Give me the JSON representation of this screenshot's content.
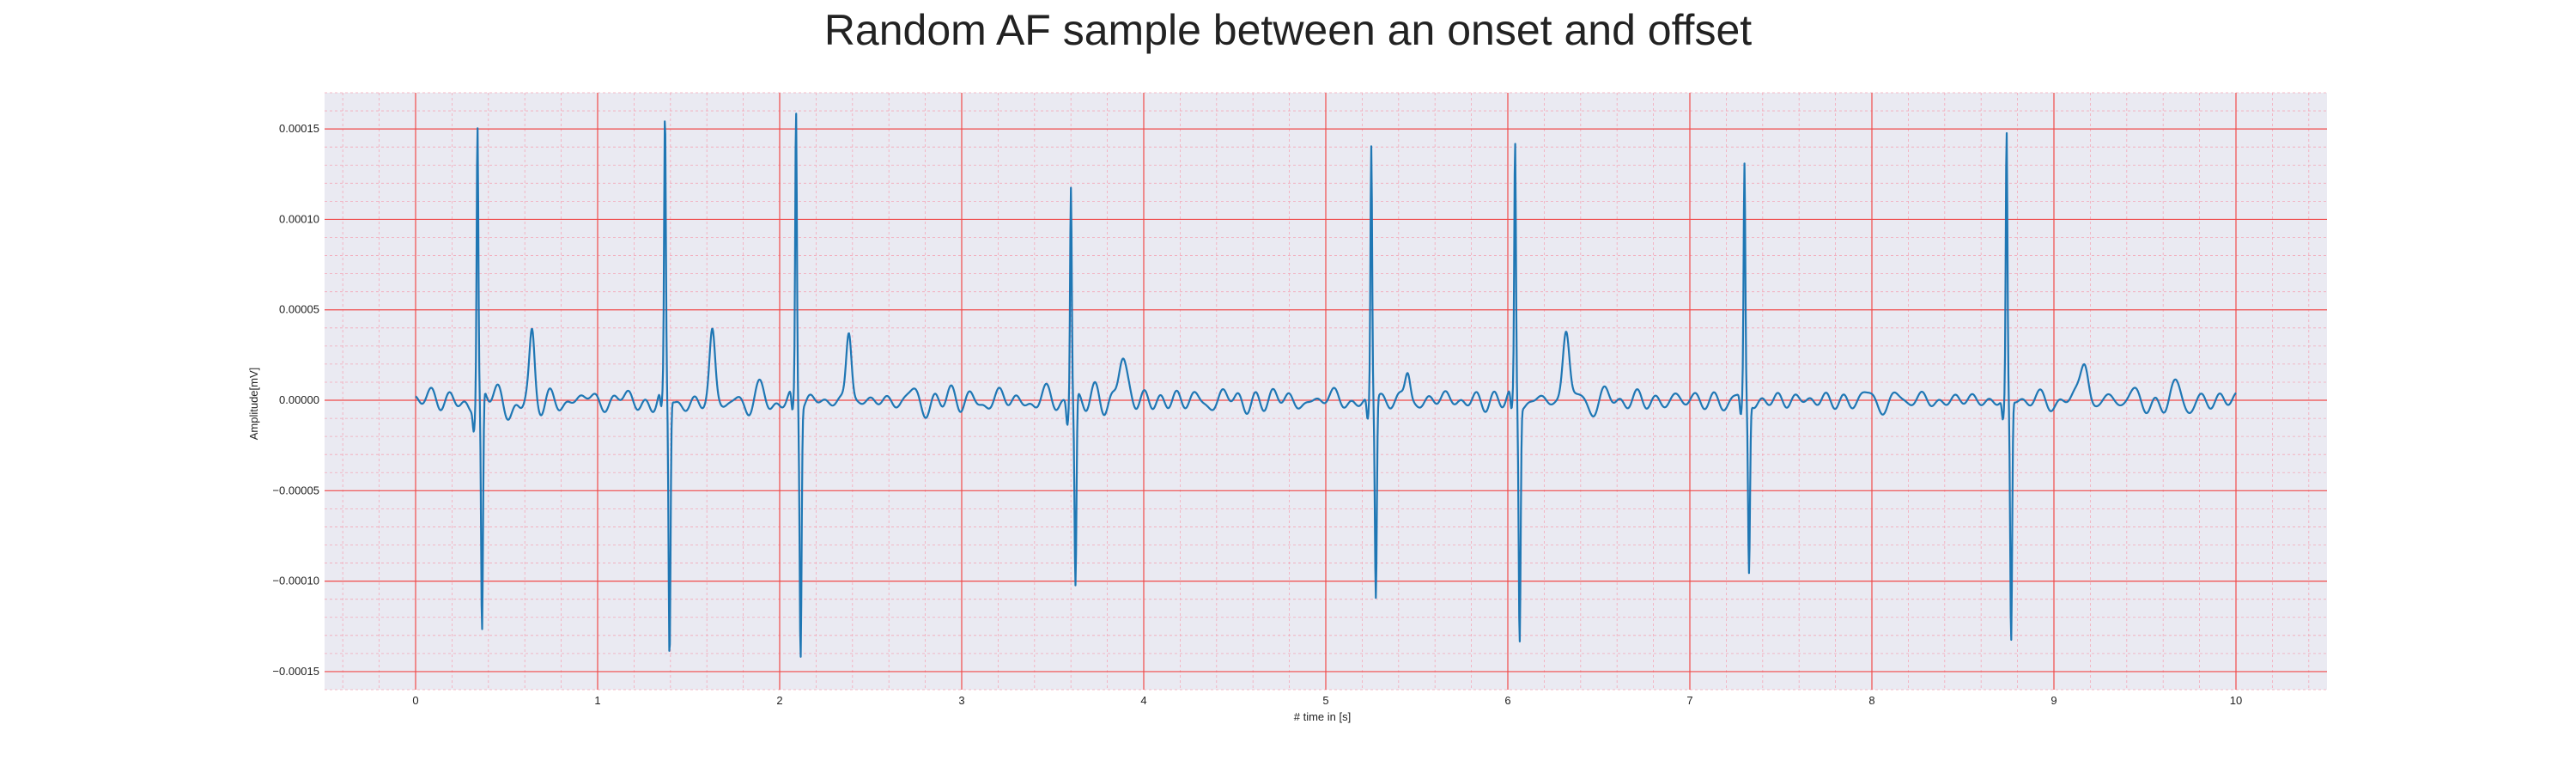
{
  "chart_data": {
    "type": "line",
    "title": "Random AF sample between an onset and offset",
    "xlabel": "# time in [s]",
    "ylabel": "Amplitude[mV]",
    "xlim": [
      -0.5,
      10.5
    ],
    "ylim": [
      -0.00016,
      0.00017
    ],
    "x_ticks": [
      0,
      1,
      2,
      3,
      4,
      5,
      6,
      7,
      8,
      9,
      10
    ],
    "x_tick_labels": [
      "0",
      "1",
      "2",
      "3",
      "4",
      "5",
      "6",
      "7",
      "8",
      "9",
      "10"
    ],
    "y_ticks": [
      -0.00015,
      -0.0001,
      -5e-05,
      0,
      5e-05,
      0.0001,
      0.00015
    ],
    "y_tick_labels": [
      "−0.00015",
      "−0.00010",
      "−0.00005",
      "0.00000",
      "0.00005",
      "0.00010",
      "0.00015"
    ],
    "grid": true,
    "minor_grid": true,
    "series": [
      {
        "color": "#1f77b4",
        "x_start": 0,
        "x_end": 10,
        "r_peaks": [
          {
            "t": 0.34,
            "peak": 0.00015,
            "trough": -0.000135
          },
          {
            "t": 1.37,
            "peak": 0.00015,
            "trough": -0.000145
          },
          {
            "t": 2.09,
            "peak": 0.000158,
            "trough": -0.000138
          },
          {
            "t": 3.6,
            "peak": 0.00012,
            "trough": -0.000105
          },
          {
            "t": 5.25,
            "peak": 0.00014,
            "trough": -0.00011
          },
          {
            "t": 6.04,
            "peak": 0.00014,
            "trough": -0.00013
          },
          {
            "t": 7.3,
            "peak": 0.000127,
            "trough": -9.5e-05
          },
          {
            "t": 8.74,
            "peak": 0.000146,
            "trough": -0.000134
          }
        ],
        "fwaves": [
          {
            "t": 0.64,
            "amp": 2.7e-05,
            "w": 0.018
          },
          {
            "t": 1.63,
            "amp": 3.1e-05,
            "w": 0.02
          },
          {
            "t": 2.38,
            "amp": 3.6e-05,
            "w": 0.02
          },
          {
            "t": 3.88,
            "amp": 2.5e-05,
            "w": 0.03
          },
          {
            "t": 5.45,
            "amp": 1.5e-05,
            "w": 0.02
          },
          {
            "t": 6.32,
            "amp": 3.8e-05,
            "w": 0.025
          },
          {
            "t": 9.17,
            "amp": 2.1e-05,
            "w": 0.03
          }
        ]
      }
    ]
  }
}
